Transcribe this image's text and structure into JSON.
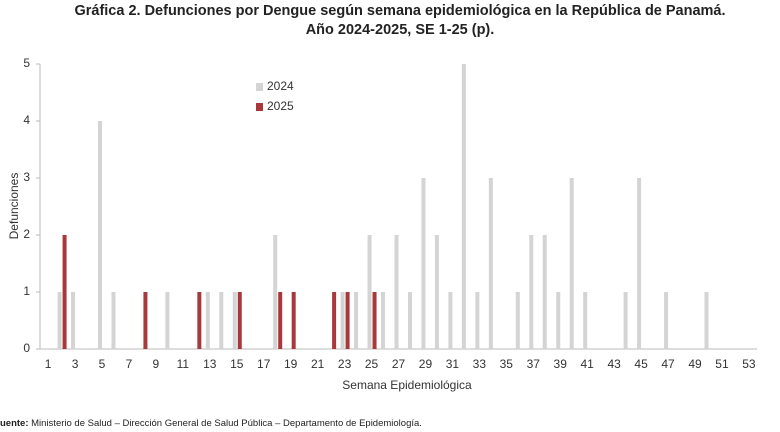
{
  "chart_data": {
    "type": "bar",
    "title": "Gráfica 2. Defunciones por Dengue según semana epidemiológica en la República de Panamá.",
    "subtitle": "Año 2024-2025, SE 1-25 (p).",
    "x_label": "Semana Epidemiológica",
    "y_label": "Defunciones",
    "x": [
      1,
      2,
      3,
      4,
      5,
      6,
      7,
      8,
      9,
      10,
      11,
      12,
      13,
      14,
      15,
      16,
      17,
      18,
      19,
      20,
      21,
      22,
      23,
      24,
      25,
      26,
      27,
      28,
      29,
      30,
      31,
      32,
      33,
      34,
      35,
      36,
      37,
      38,
      39,
      40,
      41,
      42,
      43,
      44,
      45,
      46,
      47,
      48,
      49,
      50,
      51,
      52,
      53
    ],
    "series": [
      {
        "name": "2024",
        "color": "#d4d4d4",
        "values": [
          0,
          1,
          1,
          0,
          4,
          1,
          0,
          0,
          0,
          1,
          0,
          0,
          1,
          1,
          1,
          0,
          0,
          2,
          0,
          0,
          0,
          0,
          1,
          1,
          2,
          1,
          2,
          1,
          3,
          2,
          1,
          5,
          1,
          3,
          0,
          1,
          2,
          2,
          1,
          3,
          1,
          0,
          0,
          1,
          3,
          0,
          1,
          0,
          0,
          1,
          0,
          0,
          0
        ]
      },
      {
        "name": "2025",
        "color": "#a8383b",
        "values": [
          0,
          2,
          0,
          0,
          0,
          0,
          0,
          1,
          0,
          0,
          0,
          1,
          0,
          0,
          1,
          0,
          0,
          1,
          1,
          0,
          0,
          1,
          1,
          0,
          1,
          0,
          0,
          0,
          0,
          0,
          0,
          0,
          0,
          0,
          0,
          0,
          0,
          0,
          0,
          0,
          0,
          0,
          0,
          0,
          0,
          0,
          0,
          0,
          0,
          0,
          0,
          0,
          0
        ]
      }
    ],
    "xlim": [
      0.4,
      53.6
    ],
    "xticks": [
      1,
      3,
      5,
      7,
      9,
      11,
      13,
      15,
      17,
      19,
      21,
      23,
      25,
      27,
      29,
      31,
      33,
      35,
      37,
      39,
      41,
      43,
      45,
      47,
      49,
      51,
      53
    ],
    "ylim": [
      0,
      5
    ],
    "yticks": [
      0,
      1,
      2,
      3,
      4,
      5
    ],
    "grid": false,
    "legend": "top-left",
    "source_label": "uente:",
    "source": "Ministerio de Salud – Dirección General de Salud Pública – Departamento de Epidemiología."
  }
}
